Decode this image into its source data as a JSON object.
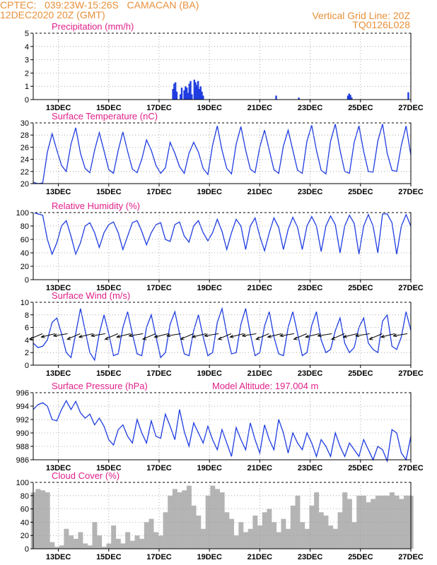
{
  "header": {
    "line1_left": "CPTEC:   039:23W-15:26S   CAMACAN (BA)",
    "line2_left": "12DEC2020 20Z (GMT)",
    "line1_right": "Vertical Grid Line: 20Z",
    "line2_right": "TQ0126L028"
  },
  "colors": {
    "header": "#e8903a",
    "title": "#e0208a",
    "line": "#1f3de0",
    "bar": "#1f3de0",
    "cloud": "#b4b4b4",
    "grid": "#999999",
    "arrow": "#000000"
  },
  "x_ticks": [
    "13DEC",
    "15DEC",
    "17DEC",
    "19DEC",
    "21DEC",
    "23DEC",
    "25DEC",
    "27DEC"
  ],
  "chart_data": [
    {
      "id": "precip",
      "type": "bar",
      "title": "Precipitation (mm/h)",
      "ylim": [
        0,
        5
      ],
      "yticks": [
        0,
        1,
        2,
        3,
        4,
        5
      ],
      "x_day_range": [
        12.0,
        27.0
      ],
      "x": [
        17.55,
        17.6,
        17.65,
        17.7,
        17.85,
        17.9,
        18.0,
        18.05,
        18.1,
        18.15,
        18.2,
        18.25,
        18.3,
        18.4,
        18.45,
        18.5,
        18.55,
        18.6,
        18.65,
        18.7,
        18.75,
        21.65,
        22.55,
        24.5,
        24.55,
        24.6,
        24.65,
        26.9
      ],
      "values": [
        0.8,
        1.2,
        1.3,
        0.6,
        0.4,
        0.9,
        0.7,
        1.0,
        0.9,
        0.5,
        1.2,
        1.4,
        0.4,
        1.5,
        1.3,
        1.1,
        1.4,
        0.8,
        1.0,
        0.6,
        0.3,
        0.3,
        0.15,
        0.3,
        0.45,
        0.35,
        0.15,
        0.55
      ]
    },
    {
      "id": "temp",
      "type": "line",
      "title": "Surface Temperature (nC)",
      "ylim": [
        20,
        30
      ],
      "yticks": [
        20,
        22,
        24,
        26,
        28,
        30
      ],
      "series": [
        {
          "x_day_range": [
            12.0,
            27.0
          ],
          "values": [
            20.2,
            20.0,
            20.1,
            25.2,
            28.2,
            25.5,
            23.0,
            22.0,
            26.5,
            29.2,
            25.0,
            22.5,
            21.8,
            25.5,
            28.4,
            25.4,
            22.3,
            21.7,
            25.5,
            28.5,
            25.3,
            22.4,
            21.8,
            24.0,
            27.2,
            25.5,
            23.0,
            21.7,
            22.6,
            26.8,
            25.0,
            22.8,
            21.7,
            25.0,
            26.8,
            25.2,
            22.5,
            21.5,
            26.3,
            29.5,
            25.5,
            22.5,
            21.6,
            26.5,
            29.4,
            25.5,
            22.4,
            21.8,
            26.0,
            28.8,
            25.5,
            22.3,
            21.7,
            26.2,
            28.8,
            25.5,
            22.2,
            21.7,
            27.0,
            29.6,
            25.5,
            22.2,
            21.6,
            27.0,
            29.8,
            25.5,
            22.0,
            21.7,
            26.8,
            29.5,
            25.3,
            22.0,
            21.9,
            27.0,
            29.8,
            25.0,
            22.2,
            22.0,
            26.3,
            29.5,
            24.7
          ]
        }
      ]
    },
    {
      "id": "humidity",
      "type": "line",
      "title": "Relative Humidity (%)",
      "ylim": [
        0,
        100
      ],
      "yticks": [
        0,
        20,
        40,
        60,
        80,
        100
      ],
      "series": [
        {
          "x_day_range": [
            12.0,
            27.0
          ],
          "values": [
            100,
            98,
            96,
            60,
            38,
            55,
            80,
            88,
            65,
            38,
            55,
            80,
            85,
            70,
            48,
            70,
            82,
            86,
            70,
            45,
            65,
            85,
            88,
            72,
            52,
            70,
            82,
            85,
            60,
            57,
            82,
            86,
            65,
            56,
            80,
            88,
            70,
            58,
            70,
            90,
            72,
            45,
            70,
            90,
            80,
            45,
            80,
            92,
            65,
            43,
            70,
            92,
            78,
            45,
            75,
            93,
            78,
            45,
            80,
            94,
            80,
            42,
            80,
            95,
            82,
            40,
            80,
            96,
            84,
            38,
            80,
            97,
            80,
            40,
            98,
            98,
            85,
            38,
            80,
            97,
            80
          ]
        }
      ]
    },
    {
      "id": "wind",
      "type": "line",
      "title": "Surface Wind (m/s)",
      "ylim": [
        0,
        10
      ],
      "yticks": [
        0,
        2,
        4,
        6,
        8,
        10
      ],
      "series": [
        {
          "x_day_range": [
            12.0,
            27.0
          ],
          "values": [
            3.5,
            2.8,
            3.0,
            4.0,
            6.8,
            7.5,
            5.0,
            2.0,
            1.2,
            5.0,
            9.0,
            5.5,
            2.0,
            0.8,
            5.0,
            8.0,
            5.0,
            1.5,
            1.8,
            6.0,
            8.5,
            5.0,
            1.8,
            1.5,
            6.0,
            8.0,
            4.5,
            1.2,
            2.0,
            6.5,
            8.5,
            5.0,
            1.8,
            1.5,
            5.5,
            8.0,
            4.5,
            1.5,
            2.0,
            6.8,
            9.0,
            5.0,
            1.8,
            2.0,
            6.5,
            9.0,
            5.0,
            1.5,
            2.0,
            6.2,
            8.5,
            4.5,
            1.8,
            1.5,
            6.0,
            8.5,
            5.0,
            1.5,
            2.0,
            6.3,
            8.5,
            4.0,
            2.0,
            2.5,
            5.5,
            7.5,
            3.5,
            2.0,
            2.8,
            6.0,
            7.5,
            3.5,
            2.5,
            2.0,
            7.0,
            8.0,
            3.0,
            2.5,
            4.5,
            8.5,
            5.5
          ]
        }
      ],
      "arrows_x_days": [
        12.25,
        12.75,
        13.25,
        13.75,
        14.25,
        14.75,
        15.25,
        15.75,
        16.25,
        16.75,
        17.25,
        17.75,
        18.25,
        18.75,
        19.25,
        19.75,
        20.25,
        20.75,
        21.25,
        21.75,
        22.25,
        22.75,
        23.25,
        23.75,
        24.25,
        24.75,
        25.25,
        25.75,
        26.25,
        26.75
      ]
    },
    {
      "id": "pressure",
      "type": "line",
      "title": "Surface Pressure (hPa)",
      "annotation": "Model Altitude: 197.004 m",
      "ylim": [
        986,
        996
      ],
      "yticks": [
        986,
        988,
        990,
        992,
        994,
        996
      ],
      "series": [
        {
          "x_day_range": [
            12.0,
            27.0
          ],
          "values": [
            993.5,
            994.2,
            994.5,
            994.0,
            992.0,
            991.8,
            993.5,
            994.8,
            993.5,
            994.7,
            993.0,
            992.2,
            992.8,
            991.2,
            992.2,
            991.0,
            989.0,
            988.2,
            990.5,
            991.2,
            989.5,
            988.5,
            992.0,
            990.0,
            988.5,
            991.8,
            989.5,
            989.2,
            992.8,
            991.0,
            989.0,
            993.5,
            990.2,
            988.0,
            991.5,
            990.0,
            988.5,
            991.0,
            989.0,
            987.5,
            990.5,
            988.5,
            986.5,
            990.8,
            989.0,
            987.5,
            991.5,
            989.0,
            987.0,
            991.2,
            989.0,
            987.5,
            992.0,
            990.0,
            987.0,
            990.0,
            988.5,
            987.5,
            990.0,
            988.5,
            986.5,
            989.0,
            988.0,
            986.5,
            990.0,
            988.0,
            986.5,
            988.5,
            987.5,
            986.5,
            989.0,
            987.5,
            986.0,
            988.0,
            987.5,
            985.8,
            990.5,
            990.0,
            987.0,
            986.0,
            989.5
          ]
        }
      ]
    },
    {
      "id": "cloud",
      "type": "area",
      "title": "Cloud Cover (%)",
      "ylim": [
        0,
        100
      ],
      "yticks": [
        0,
        20,
        40,
        60,
        80,
        100
      ],
      "series": [
        {
          "x_day_range": [
            12.0,
            27.0
          ],
          "values": [
            85,
            90,
            88,
            85,
            10,
            3,
            5,
            30,
            20,
            15,
            25,
            8,
            5,
            40,
            20,
            3,
            8,
            35,
            15,
            8,
            25,
            12,
            20,
            15,
            40,
            45,
            25,
            20,
            55,
            80,
            90,
            85,
            88,
            95,
            65,
            50,
            30,
            80,
            95,
            90,
            85,
            55,
            45,
            20,
            40,
            25,
            30,
            50,
            35,
            55,
            60,
            40,
            25,
            45,
            30,
            65,
            80,
            40,
            30,
            65,
            85,
            55,
            50,
            35,
            30,
            55,
            85,
            75,
            40,
            80,
            80,
            70,
            75,
            80,
            80,
            80,
            85,
            80,
            75,
            80,
            80
          ]
        }
      ]
    }
  ]
}
